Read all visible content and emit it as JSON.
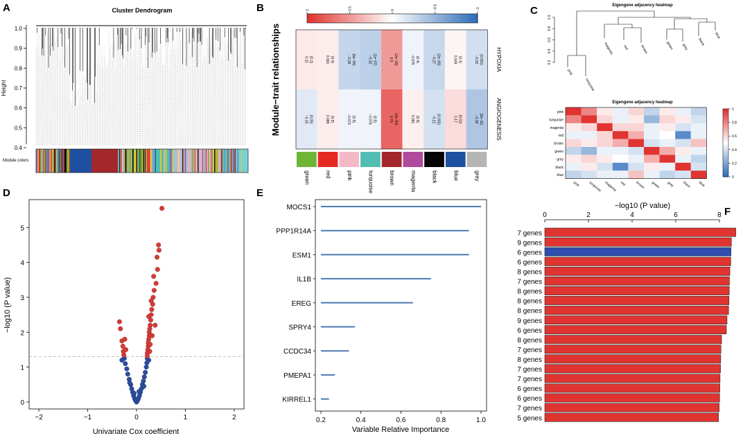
{
  "colors": {
    "red": "#e03430",
    "blue": "#2f4faf",
    "bar_line": "#4a78b0",
    "volcano_red": "#d43b36",
    "volcano_blue": "#2b4d9d",
    "grey_dash": "#aaaaaa",
    "module": {
      "green": "#6fb535",
      "red": "#e52a23",
      "pink": "#f4b9c7",
      "turquoise": "#52bdb2",
      "brown": "#a3282b",
      "magenta": "#b04a9c",
      "black": "#050505",
      "blue": "#1e4fa0",
      "grey": "#b5b5b5"
    }
  },
  "panelA": {
    "letter": "A",
    "title": "Cluster Dendrogram",
    "ylabel": "Height",
    "yticks": [
      "0.4",
      "0.5",
      "0.6",
      "0.7",
      "0.8",
      "0.9",
      "1.0"
    ],
    "module_label": "Module colors"
  },
  "panelB": {
    "letter": "B",
    "ylabel": "Module−trait relationships",
    "scale_ticks": [
      "1",
      "0.5",
      "0",
      "−0.5",
      "−1"
    ],
    "traits": [
      "HYPOXIA",
      "ANGIOGENESIS"
    ],
    "modules": [
      "green",
      "red",
      "pink",
      "turquoise",
      "brown",
      "magenta",
      "black",
      "blue",
      "grey"
    ],
    "cells": [
      [
        {
          "r": "0.11",
          "p": "(0.2)",
          "v": 0.11
        },
        {
          "r": "0.091",
          "p": "(0.4)",
          "v": 0.091
        },
        {
          "r": "−0.28",
          "p": "(6e−06)",
          "v": -0.28
        },
        {
          "r": "−0.32",
          "p": "(1e−07)",
          "v": -0.32
        },
        {
          "r": "0.5",
          "p": "(2e−18)",
          "v": 0.5
        },
        {
          "r": "−0.076",
          "p": "(0.4)",
          "v": -0.076
        },
        {
          "r": "−0.27",
          "p": "(2e−05)",
          "v": -0.27
        },
        {
          "r": "0.049",
          "p": "(0.4)",
          "v": 0.049
        },
        {
          "r": "−0.22",
          "p": "(0.001)",
          "v": -0.22
        }
      ],
      [
        {
          "r": "−0.15",
          "p": "(0.05)",
          "v": -0.15
        },
        {
          "r": "0.088",
          "p": "(0.5)",
          "v": 0.088
        },
        {
          "r": "−0.073",
          "p": "(0.5)",
          "v": -0.073
        },
        {
          "r": "−0.076",
          "p": "(0.5)",
          "v": -0.076
        },
        {
          "r": "0.76",
          "p": "(2e−54)",
          "v": 0.76
        },
        {
          "r": "0.081",
          "p": "(0.5)",
          "v": 0.081
        },
        {
          "r": "−0.21",
          "p": "(0.002)",
          "v": -0.21
        },
        {
          "r": "0.17",
          "p": "(0.02)",
          "v": 0.17
        },
        {
          "r": "−0.39",
          "p": "(2e−11)",
          "v": -0.39
        }
      ]
    ]
  },
  "panelC": {
    "letter": "C",
    "title_top": "Eigengene adjacency heatmap",
    "title_bottom": "Eigengene adjacency heatmap",
    "dendro_yticks": [
      "0.2",
      "0.4",
      "0.6",
      "0.8",
      "1.0"
    ],
    "dendro_leaves": [
      "pink",
      "turquoise",
      "magenta",
      "red",
      "brown",
      "green",
      "grey",
      "black",
      "blue"
    ],
    "modules": [
      "pink",
      "turquoise",
      "magenta",
      "red",
      "brown",
      "green",
      "grey",
      "black",
      "blue"
    ],
    "scale_ticks": [
      "0",
      "0.2",
      "0.4",
      "0.6",
      "0.8",
      "1"
    ],
    "matrix": [
      [
        1.0,
        0.8,
        0.55,
        0.45,
        0.6,
        0.35,
        0.55,
        0.45,
        0.35
      ],
      [
        0.8,
        1.0,
        0.6,
        0.45,
        0.55,
        0.25,
        0.6,
        0.55,
        0.4
      ],
      [
        0.55,
        0.6,
        1.0,
        0.6,
        0.6,
        0.45,
        0.55,
        0.4,
        0.45
      ],
      [
        0.45,
        0.45,
        0.6,
        1.0,
        0.7,
        0.45,
        0.5,
        0.1,
        0.45
      ],
      [
        0.6,
        0.55,
        0.6,
        0.7,
        1.0,
        0.4,
        0.45,
        0.4,
        0.65
      ],
      [
        0.35,
        0.25,
        0.45,
        0.45,
        0.4,
        1.0,
        0.7,
        0.55,
        0.45
      ],
      [
        0.55,
        0.6,
        0.55,
        0.5,
        0.45,
        0.7,
        1.0,
        0.45,
        0.35
      ],
      [
        0.45,
        0.55,
        0.4,
        0.1,
        0.4,
        0.55,
        0.45,
        1.0,
        0.4
      ],
      [
        0.35,
        0.4,
        0.45,
        0.45,
        0.65,
        0.45,
        0.35,
        0.4,
        1.0
      ]
    ]
  },
  "chart_data": [
    {
      "type": "scatter",
      "panel": "D",
      "letter": "D",
      "xlabel": "Univariate Cox coefficient",
      "ylabel": "−log10 (P value)",
      "xlim": [
        -2.2,
        2.2
      ],
      "ylim": [
        -0.2,
        5.8
      ],
      "xticks": [
        "−2",
        "−1",
        "0",
        "1",
        "2"
      ],
      "yticks": [
        "0",
        "1",
        "2",
        "3",
        "4",
        "5"
      ],
      "threshold": 1.3,
      "red_points": [
        [
          0.52,
          5.55
        ],
        [
          0.45,
          4.5
        ],
        [
          0.46,
          4.35
        ],
        [
          0.42,
          4.15
        ],
        [
          0.43,
          3.8
        ],
        [
          0.4,
          3.4
        ],
        [
          0.36,
          3.2
        ],
        [
          0.34,
          3.0
        ],
        [
          0.33,
          2.8
        ],
        [
          0.31,
          2.65
        ],
        [
          0.3,
          2.5
        ],
        [
          0.29,
          2.35
        ],
        [
          0.28,
          2.2
        ],
        [
          0.27,
          2.1
        ],
        [
          0.26,
          2.0
        ],
        [
          0.26,
          1.9
        ],
        [
          0.25,
          1.8
        ],
        [
          0.24,
          1.7
        ],
        [
          0.24,
          1.6
        ],
        [
          0.23,
          1.5
        ],
        [
          0.22,
          1.4
        ],
        [
          0.22,
          1.32
        ],
        [
          0.25,
          2.45
        ],
        [
          0.3,
          2.9
        ],
        [
          0.35,
          3.6
        ],
        [
          0.38,
          2.2
        ],
        [
          0.32,
          1.9
        ],
        [
          0.28,
          1.65
        ],
        [
          0.27,
          1.45
        ],
        [
          -0.35,
          2.3
        ],
        [
          -0.33,
          2.1
        ],
        [
          -0.3,
          1.75
        ],
        [
          -0.28,
          1.6
        ],
        [
          -0.27,
          1.45
        ],
        [
          -0.26,
          1.35
        ],
        [
          -0.22,
          1.5
        ],
        [
          -0.24,
          1.8
        ]
      ],
      "blue_points": [
        [
          -0.25,
          1.25
        ],
        [
          -0.23,
          1.1
        ],
        [
          -0.2,
          0.95
        ],
        [
          -0.18,
          0.8
        ],
        [
          -0.15,
          0.65
        ],
        [
          -0.12,
          0.5
        ],
        [
          -0.1,
          0.38
        ],
        [
          -0.08,
          0.28
        ],
        [
          -0.06,
          0.18
        ],
        [
          -0.04,
          0.1
        ],
        [
          -0.02,
          0.04
        ],
        [
          0.0,
          0.0
        ],
        [
          0.02,
          0.04
        ],
        [
          0.04,
          0.1
        ],
        [
          0.06,
          0.18
        ],
        [
          0.08,
          0.28
        ],
        [
          0.1,
          0.38
        ],
        [
          0.12,
          0.5
        ],
        [
          0.14,
          0.6
        ],
        [
          0.16,
          0.72
        ],
        [
          0.18,
          0.85
        ],
        [
          0.2,
          1.0
        ],
        [
          0.21,
          1.12
        ],
        [
          0.22,
          1.25
        ],
        [
          -0.3,
          1.2
        ],
        [
          0.25,
          1.2
        ],
        [
          -0.14,
          0.55
        ],
        [
          0.15,
          0.45
        ],
        [
          -0.05,
          0.25
        ],
        [
          0.05,
          0.3
        ]
      ]
    },
    {
      "type": "bar",
      "panel": "E",
      "letter": "E",
      "xlabel": "Variable Relative Importance",
      "xlim": [
        0.2,
        1.0
      ],
      "xticks": [
        "0.2",
        "0.4",
        "0.6",
        "0.8",
        "1.0"
      ],
      "categories": [
        "MOCS1",
        "PPP1R14A",
        "ESM1",
        "IL1B",
        "EREG",
        "SPRY4",
        "CCDC34",
        "PMEPA1",
        "KIRREL1"
      ],
      "values": [
        1.0,
        0.94,
        0.94,
        0.75,
        0.66,
        0.37,
        0.34,
        0.27,
        0.24
      ]
    },
    {
      "type": "bar",
      "panel": "F",
      "letter": "F",
      "xlabel": "−log10 (P value)",
      "xlim": [
        0,
        8.7
      ],
      "xticks": [
        "0",
        "2",
        "4",
        "6",
        "8"
      ],
      "categories": [
        "7 genes",
        "9 genes",
        "6 genes",
        "6 genes",
        "8 genes",
        "7 genes",
        "8 genes",
        "8 genes",
        "8 genes",
        "9 genes",
        "6 genes",
        "8 genes",
        "7 genes",
        "8 genes",
        "7 genes",
        "7 genes",
        "6 genes",
        "6 genes",
        "7 genes",
        "5 genes"
      ],
      "values": [
        8.75,
        8.55,
        8.53,
        8.52,
        8.48,
        8.46,
        8.45,
        8.44,
        8.42,
        8.35,
        8.32,
        8.1,
        8.07,
        8.06,
        8.05,
        8.03,
        8.02,
        8.01,
        7.99,
        7.96
      ],
      "highlight_index": 2
    }
  ]
}
